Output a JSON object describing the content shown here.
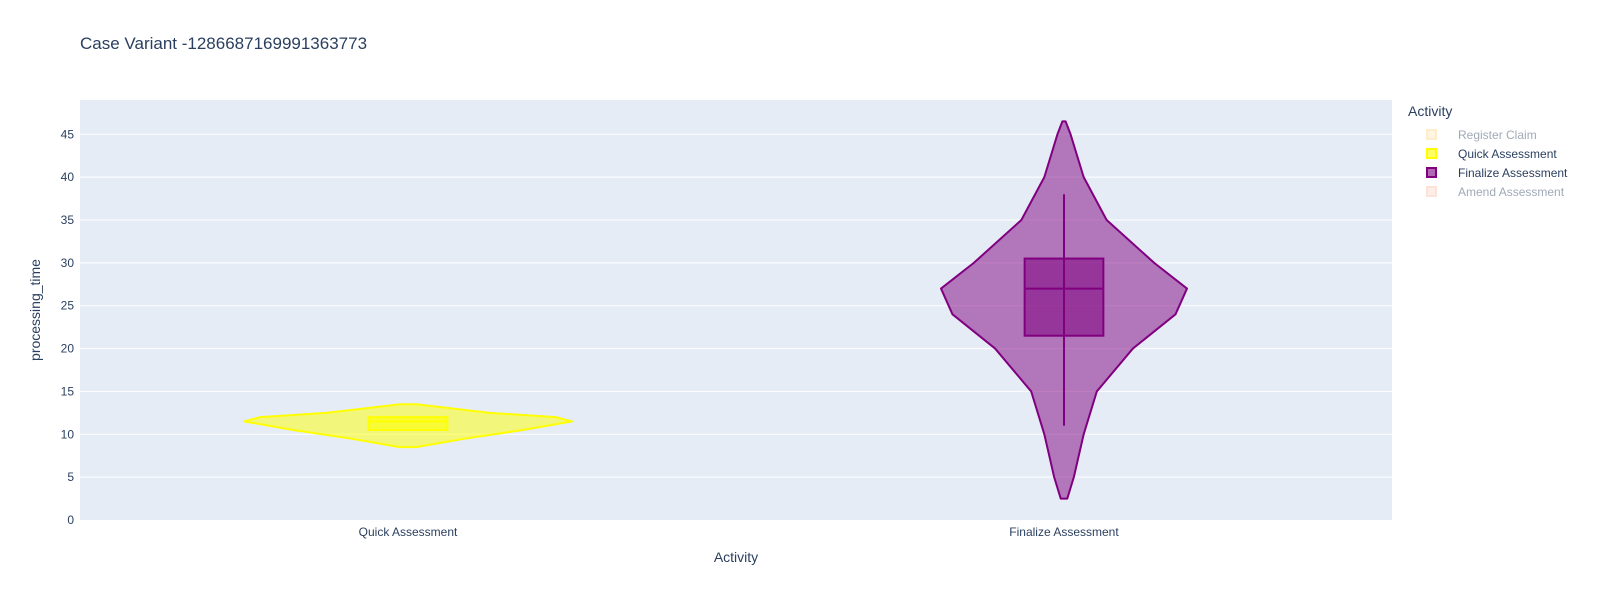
{
  "chart_data": {
    "type": "violin",
    "title": "Case Variant -1286687169991363773",
    "xlabel": "Activity",
    "ylabel": "processing_time",
    "ylim": [
      0,
      49
    ],
    "yticks": [
      0,
      5,
      10,
      15,
      20,
      25,
      30,
      35,
      40,
      45
    ],
    "categories": [
      "Quick Assessment",
      "Finalize Assessment"
    ],
    "series": [
      {
        "name": "Quick Assessment",
        "color": "#ffff00",
        "min": 8.5,
        "q1": 10.5,
        "median": 11.5,
        "q3": 12,
        "max": 13.5,
        "density": [
          [
            8.5,
            0.05
          ],
          [
            9.5,
            0.35
          ],
          [
            10.5,
            0.7
          ],
          [
            11.5,
            1.0
          ],
          [
            12,
            0.9
          ],
          [
            12.5,
            0.5
          ],
          [
            13.5,
            0.05
          ]
        ]
      },
      {
        "name": "Finalize Assessment",
        "color": "#800080",
        "min": 2.5,
        "q1": 21.5,
        "median": 27,
        "q3": 30.5,
        "max": 46.5,
        "whisker_low": 11,
        "whisker_high": 38,
        "density": [
          [
            2.5,
            0.02
          ],
          [
            5,
            0.06
          ],
          [
            10,
            0.12
          ],
          [
            15,
            0.2
          ],
          [
            20,
            0.42
          ],
          [
            24,
            0.68
          ],
          [
            27,
            0.75
          ],
          [
            30,
            0.55
          ],
          [
            35,
            0.26
          ],
          [
            40,
            0.12
          ],
          [
            45,
            0.04
          ],
          [
            46.5,
            0.01
          ]
        ]
      }
    ],
    "legend": {
      "title": "Activity",
      "items": [
        {
          "name": "Register Claim",
          "color": "#fdd98c",
          "hidden": true
        },
        {
          "name": "Quick Assessment",
          "color": "#ffff00",
          "hidden": false
        },
        {
          "name": "Finalize Assessment",
          "color": "#800080",
          "hidden": false
        },
        {
          "name": "Amend Assessment",
          "color": "#fbbfa8",
          "hidden": true
        }
      ]
    }
  }
}
